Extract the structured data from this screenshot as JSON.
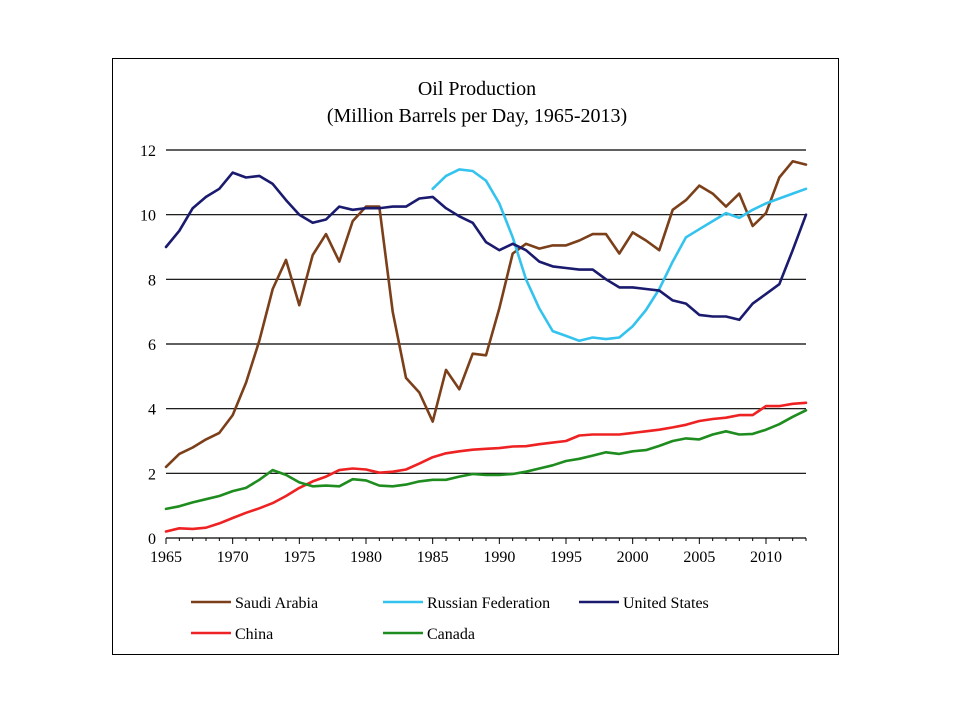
{
  "chart_data": {
    "type": "line",
    "title": "Oil Production",
    "subtitle": "(Million Barrels per Day, 1965-2013)",
    "xlabel": "",
    "ylabel": "",
    "xlim": [
      1965,
      2013
    ],
    "ylim": [
      0,
      12
    ],
    "x_ticks": [
      1965,
      1970,
      1975,
      1980,
      1985,
      1990,
      1995,
      2000,
      2005,
      2010
    ],
    "y_ticks": [
      0,
      2,
      4,
      6,
      8,
      10,
      12
    ],
    "grid": "horizontal",
    "legend_position": "bottom",
    "series": [
      {
        "name": "Saudi Arabia",
        "color": "#7B3F1A",
        "x": [
          1965,
          1966,
          1967,
          1968,
          1969,
          1970,
          1971,
          1972,
          1973,
          1974,
          1975,
          1976,
          1977,
          1978,
          1979,
          1980,
          1981,
          1982,
          1983,
          1984,
          1985,
          1986,
          1987,
          1988,
          1989,
          1990,
          1991,
          1992,
          1993,
          1994,
          1995,
          1996,
          1997,
          1998,
          1999,
          2000,
          2001,
          2002,
          2003,
          2004,
          2005,
          2006,
          2007,
          2008,
          2009,
          2010,
          2011,
          2012,
          2013
        ],
        "values": [
          2.2,
          2.6,
          2.8,
          3.05,
          3.25,
          3.8,
          4.8,
          6.1,
          7.7,
          8.6,
          7.2,
          8.75,
          9.4,
          8.55,
          9.8,
          10.25,
          10.25,
          7.0,
          4.95,
          4.5,
          3.6,
          5.2,
          4.6,
          5.7,
          5.65,
          7.1,
          8.8,
          9.1,
          8.95,
          9.05,
          9.05,
          9.2,
          9.4,
          9.4,
          8.8,
          9.45,
          9.2,
          8.9,
          10.15,
          10.45,
          10.9,
          10.65,
          10.25,
          10.65,
          9.65,
          10.05,
          11.15,
          11.65,
          11.55
        ]
      },
      {
        "name": "Russian Federation",
        "color": "#33C3EE",
        "x": [
          1985,
          1986,
          1987,
          1988,
          1989,
          1990,
          1991,
          1992,
          1993,
          1994,
          1995,
          1996,
          1997,
          1998,
          1999,
          2000,
          2001,
          2002,
          2003,
          2004,
          2005,
          2006,
          2007,
          2008,
          2009,
          2010,
          2011,
          2012,
          2013
        ],
        "values": [
          10.8,
          11.2,
          11.4,
          11.35,
          11.05,
          10.35,
          9.3,
          8.0,
          7.1,
          6.4,
          6.25,
          6.1,
          6.2,
          6.15,
          6.2,
          6.55,
          7.05,
          7.7,
          8.55,
          9.3,
          9.55,
          9.8,
          10.05,
          9.9,
          10.15,
          10.35,
          10.5,
          10.65,
          10.8
        ]
      },
      {
        "name": "United States",
        "color": "#1A1A6E",
        "x": [
          1965,
          1966,
          1967,
          1968,
          1969,
          1970,
          1971,
          1972,
          1973,
          1974,
          1975,
          1976,
          1977,
          1978,
          1979,
          1980,
          1981,
          1982,
          1983,
          1984,
          1985,
          1986,
          1987,
          1988,
          1989,
          1990,
          1991,
          1992,
          1993,
          1994,
          1995,
          1996,
          1997,
          1998,
          1999,
          2000,
          2001,
          2002,
          2003,
          2004,
          2005,
          2006,
          2007,
          2008,
          2009,
          2010,
          2011,
          2012,
          2013
        ],
        "values": [
          9.0,
          9.5,
          10.2,
          10.55,
          10.8,
          11.3,
          11.15,
          11.2,
          10.95,
          10.45,
          10.0,
          9.75,
          9.85,
          10.25,
          10.15,
          10.2,
          10.2,
          10.25,
          10.25,
          10.5,
          10.55,
          10.2,
          9.95,
          9.75,
          9.15,
          8.9,
          9.1,
          8.9,
          8.55,
          8.4,
          8.35,
          8.3,
          8.3,
          8.0,
          7.75,
          7.75,
          7.7,
          7.65,
          7.35,
          7.25,
          6.9,
          6.85,
          6.85,
          6.75,
          7.25,
          7.55,
          7.85,
          8.9,
          10.0
        ]
      },
      {
        "name": "China",
        "color": "#EE2222",
        "x": [
          1965,
          1966,
          1967,
          1968,
          1969,
          1970,
          1971,
          1972,
          1973,
          1974,
          1975,
          1976,
          1977,
          1978,
          1979,
          1980,
          1981,
          1982,
          1983,
          1984,
          1985,
          1986,
          1987,
          1988,
          1989,
          1990,
          1991,
          1992,
          1993,
          1994,
          1995,
          1996,
          1997,
          1998,
          1999,
          2000,
          2001,
          2002,
          2003,
          2004,
          2005,
          2006,
          2007,
          2008,
          2009,
          2010,
          2011,
          2012,
          2013
        ],
        "values": [
          0.2,
          0.3,
          0.28,
          0.32,
          0.45,
          0.62,
          0.78,
          0.92,
          1.08,
          1.3,
          1.55,
          1.75,
          1.9,
          2.1,
          2.15,
          2.12,
          2.02,
          2.05,
          2.12,
          2.3,
          2.5,
          2.62,
          2.68,
          2.73,
          2.76,
          2.78,
          2.83,
          2.84,
          2.9,
          2.95,
          3.0,
          3.17,
          3.2,
          3.2,
          3.2,
          3.25,
          3.3,
          3.35,
          3.42,
          3.5,
          3.62,
          3.68,
          3.72,
          3.8,
          3.8,
          4.08,
          4.08,
          4.15,
          4.18
        ]
      },
      {
        "name": "Canada",
        "color": "#1E8C1E",
        "x": [
          1965,
          1966,
          1967,
          1968,
          1969,
          1970,
          1971,
          1972,
          1973,
          1974,
          1975,
          1976,
          1977,
          1978,
          1979,
          1980,
          1981,
          1982,
          1983,
          1984,
          1985,
          1986,
          1987,
          1988,
          1989,
          1990,
          1991,
          1992,
          1993,
          1994,
          1995,
          1996,
          1997,
          1998,
          1999,
          2000,
          2001,
          2002,
          2003,
          2004,
          2005,
          2006,
          2007,
          2008,
          2009,
          2010,
          2011,
          2012,
          2013
        ],
        "values": [
          0.9,
          0.98,
          1.1,
          1.2,
          1.3,
          1.45,
          1.55,
          1.8,
          2.1,
          1.95,
          1.72,
          1.6,
          1.62,
          1.6,
          1.82,
          1.78,
          1.62,
          1.6,
          1.65,
          1.75,
          1.8,
          1.8,
          1.9,
          1.98,
          1.95,
          1.95,
          1.98,
          2.05,
          2.15,
          2.25,
          2.38,
          2.45,
          2.55,
          2.65,
          2.6,
          2.68,
          2.72,
          2.85,
          3.0,
          3.08,
          3.05,
          3.2,
          3.3,
          3.2,
          3.22,
          3.35,
          3.52,
          3.75,
          3.95
        ]
      }
    ]
  }
}
